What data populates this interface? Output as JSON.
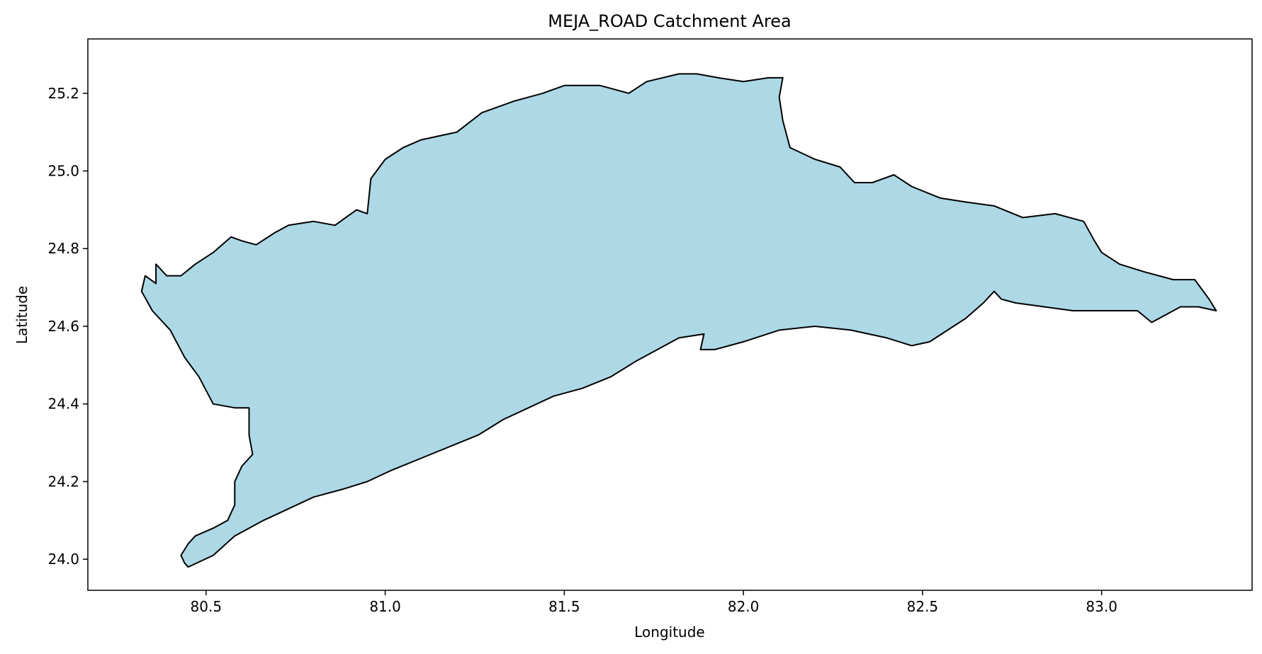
{
  "chart_data": {
    "type": "map",
    "title": "MEJA_ROAD Catchment Area",
    "xlabel": "Longitude",
    "ylabel": "Latitude",
    "xlim": [
      80.17,
      83.42
    ],
    "ylim": [
      23.92,
      25.34
    ],
    "xticks": [
      80.5,
      81.0,
      81.5,
      82.0,
      82.5,
      83.0
    ],
    "xtick_labels": [
      "80.5",
      "81.0",
      "81.5",
      "82.0",
      "82.5",
      "83.0"
    ],
    "yticks": [
      24.0,
      24.2,
      24.4,
      24.6,
      24.8,
      25.0,
      25.2
    ],
    "ytick_labels": [
      "24.0",
      "24.2",
      "24.4",
      "24.6",
      "24.8",
      "25.0",
      "25.2"
    ],
    "grid": false,
    "fill_color": "#add8e6",
    "edge_color": "#000000",
    "boundary": [
      [
        80.44,
        23.99
      ],
      [
        80.43,
        24.01
      ],
      [
        80.45,
        24.04
      ],
      [
        80.47,
        24.06
      ],
      [
        80.52,
        24.08
      ],
      [
        80.56,
        24.1
      ],
      [
        80.58,
        24.14
      ],
      [
        80.58,
        24.2
      ],
      [
        80.6,
        24.24
      ],
      [
        80.63,
        24.27
      ],
      [
        80.62,
        24.32
      ],
      [
        80.62,
        24.39
      ],
      [
        80.58,
        24.39
      ],
      [
        80.52,
        24.4
      ],
      [
        80.48,
        24.47
      ],
      [
        80.44,
        24.52
      ],
      [
        80.4,
        24.59
      ],
      [
        80.35,
        24.64
      ],
      [
        80.32,
        24.69
      ],
      [
        80.33,
        24.73
      ],
      [
        80.36,
        24.71
      ],
      [
        80.36,
        24.76
      ],
      [
        80.39,
        24.73
      ],
      [
        80.43,
        24.73
      ],
      [
        80.47,
        24.76
      ],
      [
        80.52,
        24.79
      ],
      [
        80.57,
        24.83
      ],
      [
        80.6,
        24.82
      ],
      [
        80.64,
        24.81
      ],
      [
        80.69,
        24.84
      ],
      [
        80.73,
        24.86
      ],
      [
        80.8,
        24.87
      ],
      [
        80.86,
        24.86
      ],
      [
        80.92,
        24.9
      ],
      [
        80.95,
        24.89
      ],
      [
        80.96,
        24.98
      ],
      [
        81.0,
        25.03
      ],
      [
        81.05,
        25.06
      ],
      [
        81.1,
        25.08
      ],
      [
        81.2,
        25.1
      ],
      [
        81.27,
        25.15
      ],
      [
        81.36,
        25.18
      ],
      [
        81.44,
        25.2
      ],
      [
        81.5,
        25.22
      ],
      [
        81.6,
        25.22
      ],
      [
        81.68,
        25.2
      ],
      [
        81.73,
        25.23
      ],
      [
        81.82,
        25.25
      ],
      [
        81.87,
        25.25
      ],
      [
        81.93,
        25.24
      ],
      [
        82.0,
        25.23
      ],
      [
        82.07,
        25.24
      ],
      [
        82.11,
        25.24
      ],
      [
        82.1,
        25.19
      ],
      [
        82.11,
        25.13
      ],
      [
        82.13,
        25.06
      ],
      [
        82.2,
        25.03
      ],
      [
        82.27,
        25.01
      ],
      [
        82.31,
        24.97
      ],
      [
        82.36,
        24.97
      ],
      [
        82.42,
        24.99
      ],
      [
        82.47,
        24.96
      ],
      [
        82.55,
        24.93
      ],
      [
        82.62,
        24.92
      ],
      [
        82.7,
        24.91
      ],
      [
        82.78,
        24.88
      ],
      [
        82.87,
        24.89
      ],
      [
        82.95,
        24.87
      ],
      [
        82.98,
        24.82
      ],
      [
        83.0,
        24.79
      ],
      [
        83.05,
        24.76
      ],
      [
        83.12,
        24.74
      ],
      [
        83.2,
        24.72
      ],
      [
        83.26,
        24.72
      ],
      [
        83.3,
        24.67
      ],
      [
        83.32,
        24.64
      ],
      [
        83.27,
        24.65
      ],
      [
        83.22,
        24.65
      ],
      [
        83.18,
        24.63
      ],
      [
        83.14,
        24.61
      ],
      [
        83.1,
        24.64
      ],
      [
        83.0,
        24.64
      ],
      [
        82.92,
        24.64
      ],
      [
        82.84,
        24.65
      ],
      [
        82.76,
        24.66
      ],
      [
        82.72,
        24.67
      ],
      [
        82.7,
        24.69
      ],
      [
        82.67,
        24.66
      ],
      [
        82.62,
        24.62
      ],
      [
        82.57,
        24.59
      ],
      [
        82.52,
        24.56
      ],
      [
        82.47,
        24.55
      ],
      [
        82.4,
        24.57
      ],
      [
        82.3,
        24.59
      ],
      [
        82.2,
        24.6
      ],
      [
        82.1,
        24.59
      ],
      [
        82.0,
        24.56
      ],
      [
        81.92,
        24.54
      ],
      [
        81.88,
        24.54
      ],
      [
        81.89,
        24.58
      ],
      [
        81.82,
        24.57
      ],
      [
        81.76,
        24.54
      ],
      [
        81.7,
        24.51
      ],
      [
        81.63,
        24.47
      ],
      [
        81.55,
        24.44
      ],
      [
        81.47,
        24.42
      ],
      [
        81.4,
        24.39
      ],
      [
        81.33,
        24.36
      ],
      [
        81.26,
        24.32
      ],
      [
        81.18,
        24.29
      ],
      [
        81.1,
        24.26
      ],
      [
        81.02,
        24.23
      ],
      [
        80.95,
        24.2
      ],
      [
        80.88,
        24.18
      ],
      [
        80.8,
        24.16
      ],
      [
        80.73,
        24.13
      ],
      [
        80.66,
        24.1
      ],
      [
        80.58,
        24.06
      ],
      [
        80.52,
        24.01
      ],
      [
        80.45,
        23.98
      ]
    ]
  }
}
